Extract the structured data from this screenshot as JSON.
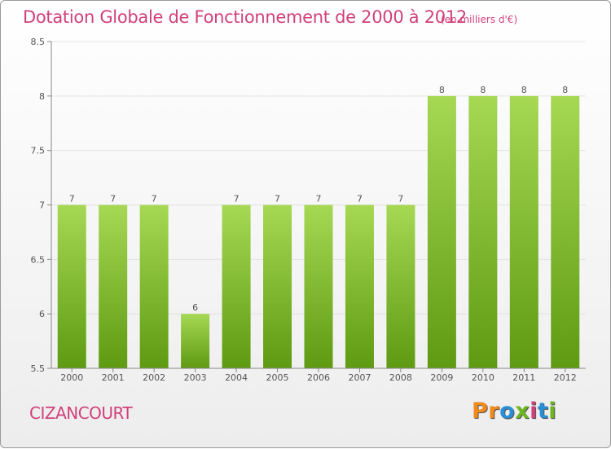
{
  "header": {
    "title": "Dotation Globale de Fonctionnement de 2000 à 2012",
    "subtitle": "(en milliers d'€)"
  },
  "footer": {
    "commune": "CIZANCOURT",
    "logo_letters": [
      "P",
      "r",
      "o",
      "x",
      "i",
      "t",
      "i"
    ],
    "logo_colors": [
      "#f08a1c",
      "#f08a1c",
      "#2a8fd6",
      "#6cb61f",
      "#d1407b",
      "#2a8fd6",
      "#6cb61f"
    ]
  },
  "chart_data": {
    "type": "bar",
    "categories": [
      "2000",
      "2001",
      "2002",
      "2003",
      "2004",
      "2005",
      "2006",
      "2007",
      "2008",
      "2009",
      "2010",
      "2011",
      "2012"
    ],
    "values": [
      7,
      7,
      7,
      6,
      7,
      7,
      7,
      7,
      7,
      8,
      8,
      8,
      8
    ],
    "data_labels": [
      "7",
      "7",
      "7",
      "6",
      "7",
      "7",
      "7",
      "7",
      "7",
      "8",
      "8",
      "8",
      "8"
    ],
    "ylim": [
      5.5,
      8.5
    ],
    "yticks": [
      5.5,
      6,
      6.5,
      7,
      7.5,
      8,
      8.5
    ],
    "ytick_labels": [
      "5.5",
      "6",
      "6.5",
      "7",
      "7.5",
      "8",
      "8.5"
    ],
    "grid": true,
    "bar_color_top": "#a6d854",
    "bar_color_bottom": "#5e9a12"
  }
}
